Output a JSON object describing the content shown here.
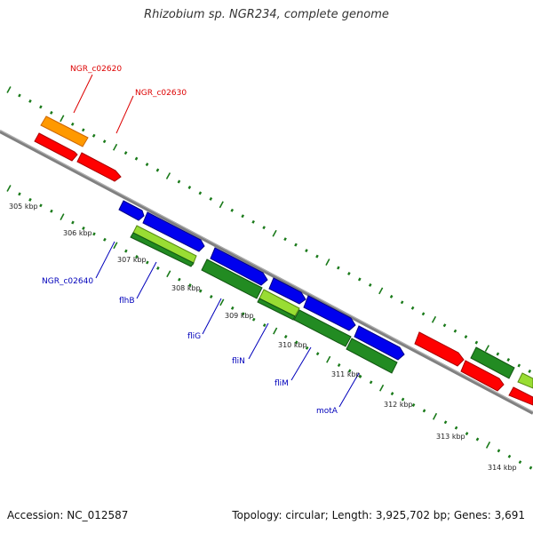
{
  "title": "Rhizobium sp. NGR234, complete genome",
  "footer": {
    "accession": "Accession: NC_012587",
    "summary": "Topology: circular; Length: 3,925,702 bp; Genes: 3,691"
  },
  "colors": {
    "backbone": "#808080",
    "tick": "#1a7a1a",
    "red": "#ff0000",
    "orange": "#ff9900",
    "blue": "#0000ee",
    "green": "#228b22",
    "lightgreen": "#99dd33",
    "label_red": "#dd0000",
    "label_blue": "#0000bb"
  },
  "kbp_labels": [
    "305 kbp",
    "306 kbp",
    "307 kbp",
    "308 kbp",
    "309 kbp",
    "310 kbp",
    "311 kbp",
    "312 kbp",
    "313 kbp",
    "314 kbp"
  ],
  "gene_labels": [
    "NGR_c02620",
    "NGR_c02630",
    "NGR_c02640",
    "flhB",
    "fliG",
    "fliN",
    "fliM",
    "motA"
  ]
}
